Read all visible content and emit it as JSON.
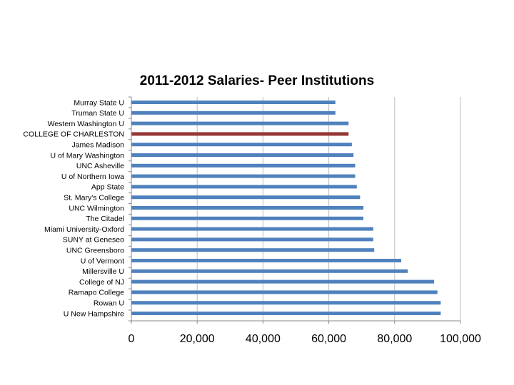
{
  "chart_data": {
    "type": "bar",
    "orientation": "horizontal",
    "title": "2011-2012 Salaries- Peer Institutions",
    "xlabel": "",
    "ylabel": "",
    "xlim": [
      0,
      100000
    ],
    "x_ticks": [
      "0",
      "20,000",
      "40,000",
      "60,000",
      "80,000",
      "100,000"
    ],
    "x_tick_values": [
      0,
      20000,
      40000,
      60000,
      80000,
      100000
    ],
    "grid": true,
    "legend": "none",
    "colors": {
      "default": "#4F81BD",
      "highlight": "#953735"
    },
    "categories": [
      "Murray State U",
      "Truman State U",
      "Western Washington U",
      "COLLEGE OF CHARLESTON",
      "James Madison",
      "U of Mary Washington",
      "UNC Asheville",
      "U of Northern Iowa",
      "App State",
      "St. Mary's College",
      "UNC Wilmington",
      "The Citadel",
      "Miami University-Oxford",
      "SUNY at Geneseo",
      "UNC Greensboro",
      "U of Vermont",
      "Millersville U",
      "College of NJ",
      "Ramapo College",
      "Rowan U",
      "U New Hampshire"
    ],
    "values": [
      62000,
      62000,
      66000,
      66000,
      67000,
      67500,
      68000,
      68000,
      68500,
      69500,
      70500,
      70500,
      73500,
      73500,
      73800,
      82000,
      84000,
      92000,
      93000,
      94000,
      94000
    ],
    "highlight_index": 3
  }
}
